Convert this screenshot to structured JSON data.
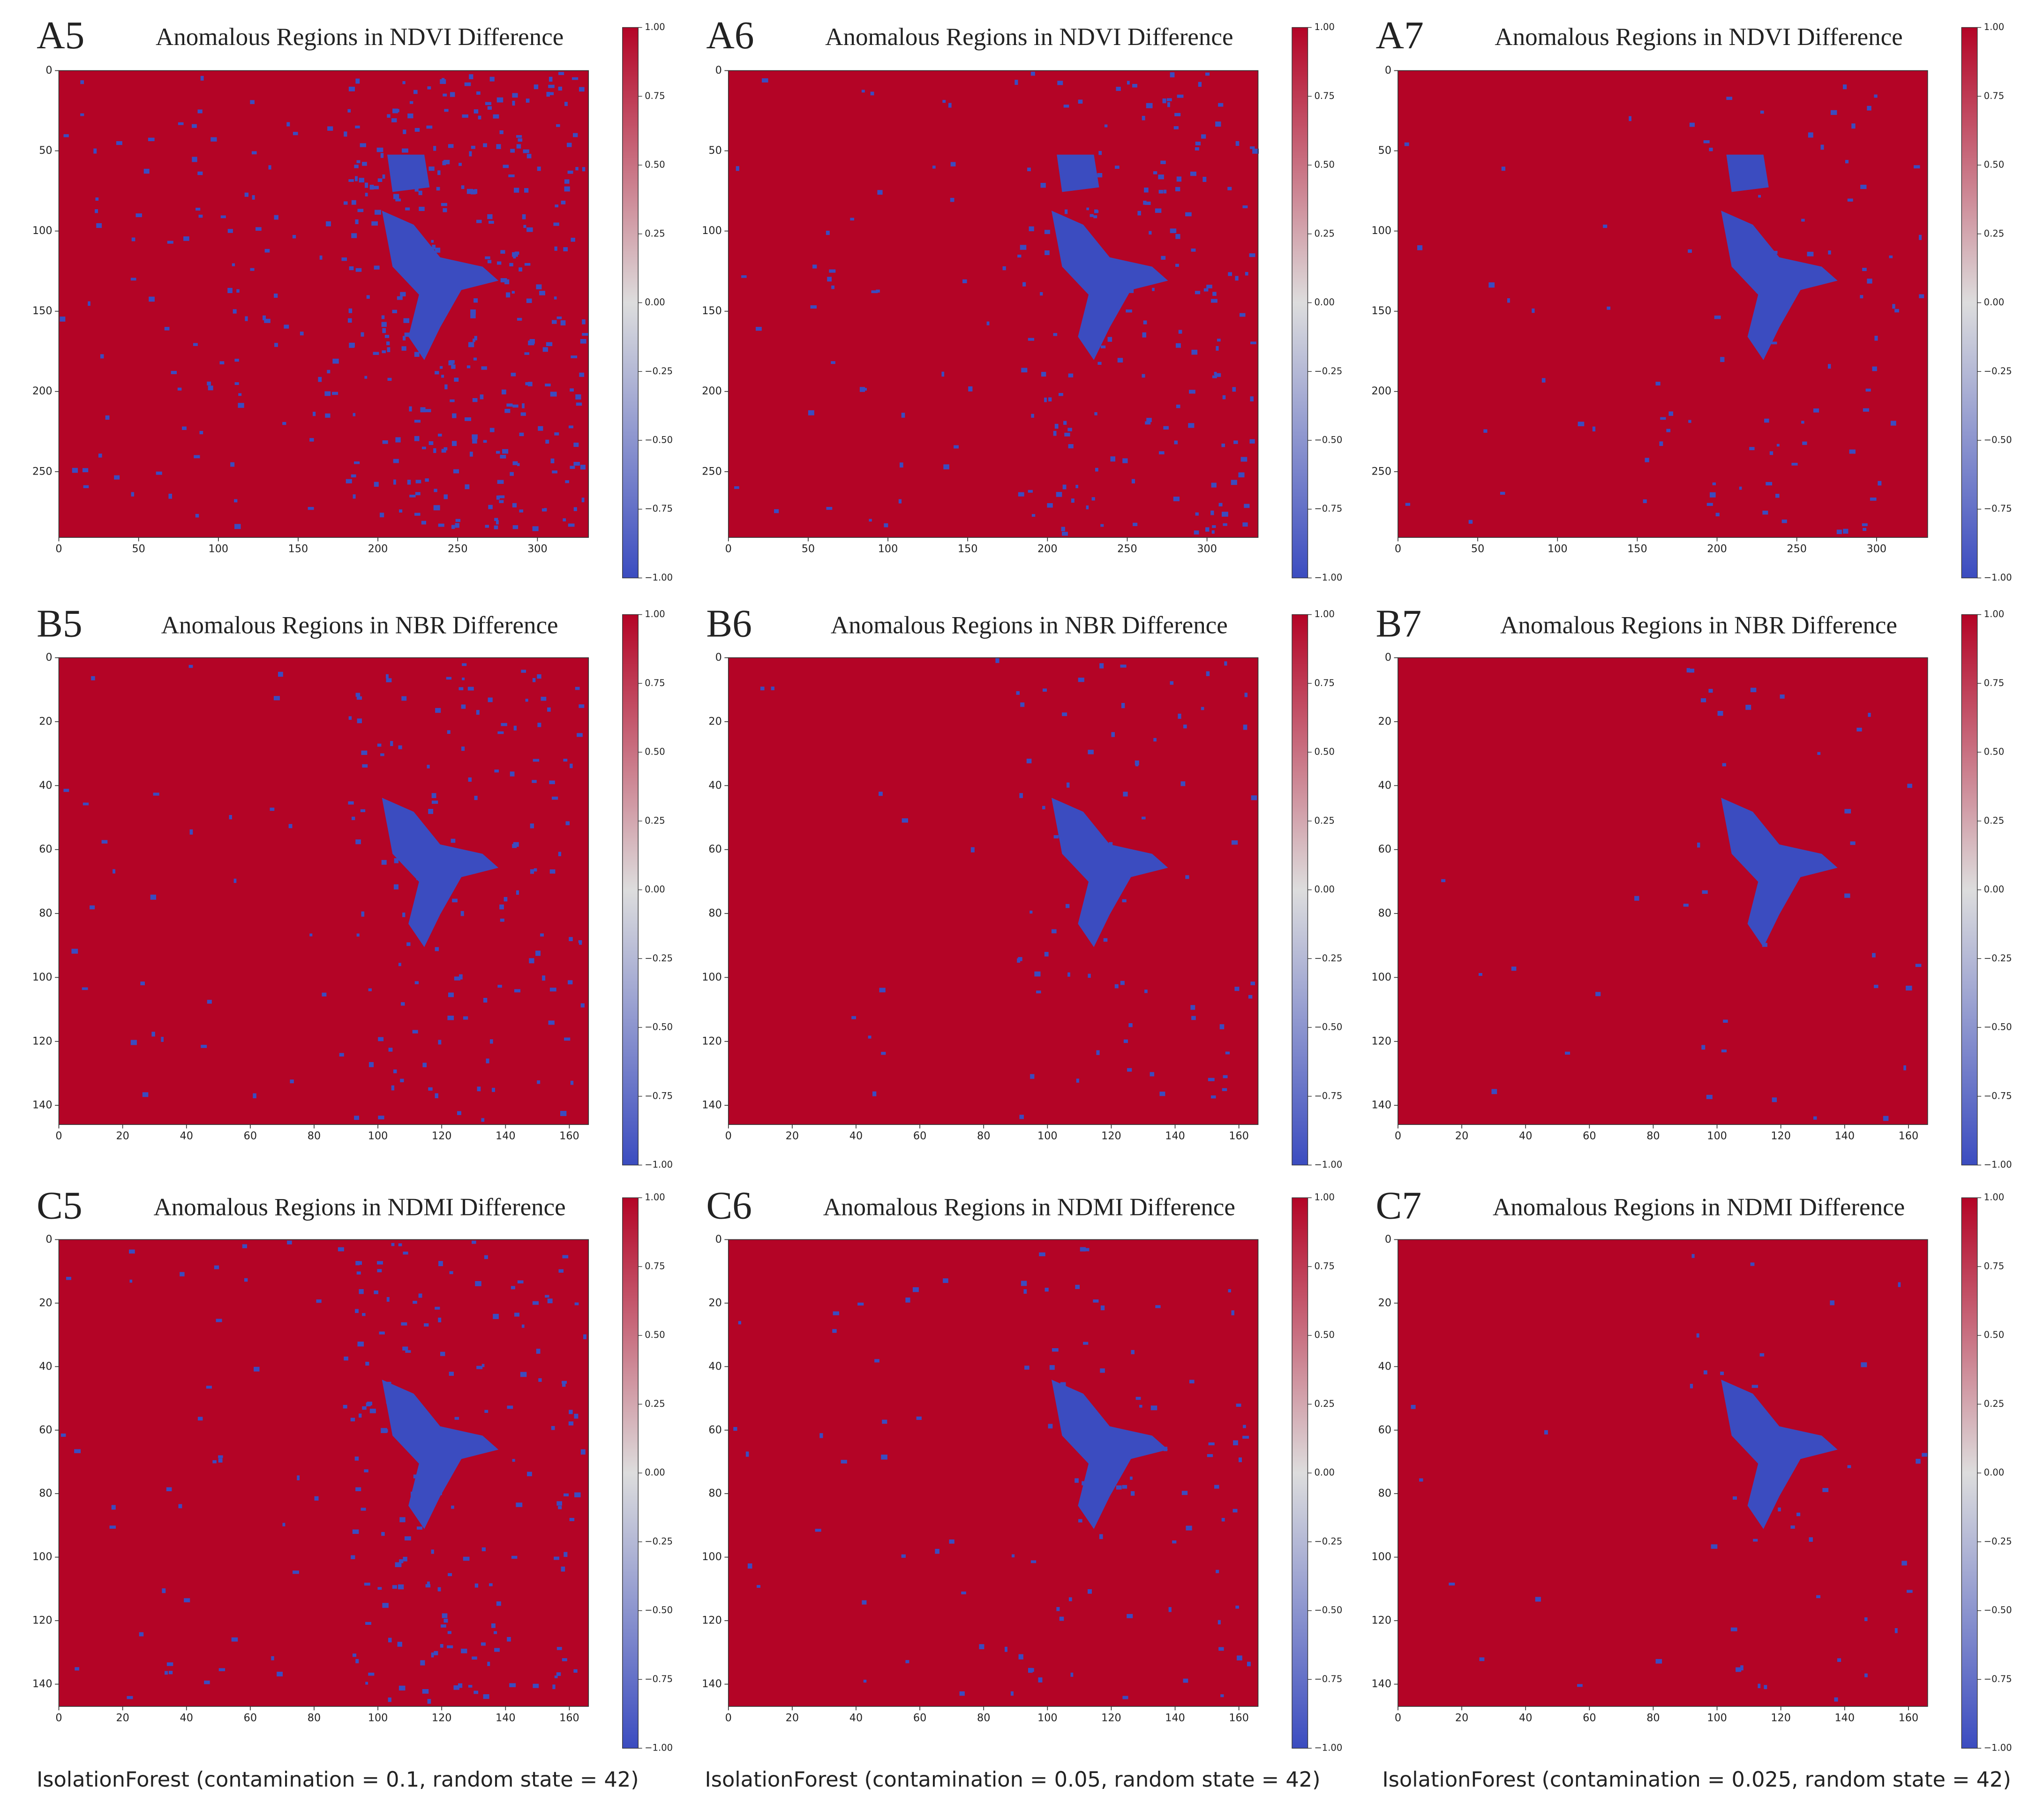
{
  "chart_data": [
    {
      "type": "heatmap",
      "panel_label": "A5",
      "title": "Anomalous Regions in NDVI Difference",
      "xlim": [
        0,
        332
      ],
      "ylim": [
        291,
        0
      ],
      "xticks": [
        0,
        50,
        100,
        150,
        200,
        250,
        300
      ],
      "yticks": [
        0,
        50,
        100,
        150,
        200,
        250
      ],
      "colormap": [
        "#3b4cc0",
        "#dddddd",
        "#b40426"
      ],
      "colorbar_lim": [
        -1,
        1
      ],
      "colorbar_ticks": [
        {
          "value": 1,
          "label": "1.00"
        },
        {
          "value": 0.75,
          "label": "0.75"
        },
        {
          "value": 0.5,
          "label": "0.50"
        },
        {
          "value": 0.25,
          "label": "0.25"
        },
        {
          "value": 0,
          "label": "0.00"
        },
        {
          "value": -0.25,
          "label": "−0.25"
        },
        {
          "value": -0.5,
          "label": "−0.50"
        },
        {
          "value": -0.75,
          "label": "−0.75"
        },
        {
          "value": -1,
          "label": "−1.00"
        }
      ]
    },
    {
      "type": "heatmap",
      "panel_label": "A6",
      "title": "Anomalous Regions in NDVI Difference",
      "xlim": [
        0,
        332
      ],
      "ylim": [
        291,
        0
      ],
      "xticks": [
        0,
        50,
        100,
        150,
        200,
        250,
        300
      ],
      "yticks": [
        0,
        50,
        100,
        150,
        200,
        250
      ],
      "colormap": [
        "#3b4cc0",
        "#dddddd",
        "#b40426"
      ],
      "colorbar_lim": [
        -1,
        1
      ],
      "colorbar_ticks": [
        {
          "value": 1,
          "label": "1.00"
        },
        {
          "value": 0.75,
          "label": "0.75"
        },
        {
          "value": 0.5,
          "label": "0.50"
        },
        {
          "value": 0.25,
          "label": "0.25"
        },
        {
          "value": 0,
          "label": "0.00"
        },
        {
          "value": -0.25,
          "label": "−0.25"
        },
        {
          "value": -0.5,
          "label": "−0.50"
        },
        {
          "value": -0.75,
          "label": "−0.75"
        },
        {
          "value": -1,
          "label": "−1.00"
        }
      ]
    },
    {
      "type": "heatmap",
      "panel_label": "A7",
      "title": "Anomalous Regions in NDVI Difference",
      "xlim": [
        0,
        332
      ],
      "ylim": [
        291,
        0
      ],
      "xticks": [
        0,
        50,
        100,
        150,
        200,
        250,
        300
      ],
      "yticks": [
        0,
        50,
        100,
        150,
        200,
        250
      ],
      "colormap": [
        "#3b4cc0",
        "#dddddd",
        "#b40426"
      ],
      "colorbar_lim": [
        -1,
        1
      ],
      "colorbar_ticks": [
        {
          "value": 1,
          "label": "1.00"
        },
        {
          "value": 0.75,
          "label": "0.75"
        },
        {
          "value": 0.5,
          "label": "0.50"
        },
        {
          "value": 0.25,
          "label": "0.25"
        },
        {
          "value": 0,
          "label": "0.00"
        },
        {
          "value": -0.25,
          "label": "−0.25"
        },
        {
          "value": -0.5,
          "label": "−0.50"
        },
        {
          "value": -0.75,
          "label": "−0.75"
        },
        {
          "value": -1,
          "label": "−1.00"
        }
      ]
    },
    {
      "type": "heatmap",
      "panel_label": "B5",
      "title": "Anomalous Regions in NBR Difference",
      "xlim": [
        0,
        166
      ],
      "ylim": [
        146,
        0
      ],
      "xticks": [
        0,
        20,
        40,
        60,
        80,
        100,
        120,
        140,
        160
      ],
      "yticks": [
        0,
        20,
        40,
        60,
        80,
        100,
        120,
        140
      ],
      "colormap": [
        "#3b4cc0",
        "#dddddd",
        "#b40426"
      ],
      "colorbar_lim": [
        -1,
        1
      ],
      "colorbar_ticks": [
        {
          "value": 1,
          "label": "1.00"
        },
        {
          "value": 0.75,
          "label": "0.75"
        },
        {
          "value": 0.5,
          "label": "0.50"
        },
        {
          "value": 0.25,
          "label": "0.25"
        },
        {
          "value": 0,
          "label": "0.00"
        },
        {
          "value": -0.25,
          "label": "−0.25"
        },
        {
          "value": -0.5,
          "label": "−0.50"
        },
        {
          "value": -0.75,
          "label": "−0.75"
        },
        {
          "value": -1,
          "label": "−1.00"
        }
      ]
    },
    {
      "type": "heatmap",
      "panel_label": "B6",
      "title": "Anomalous Regions in NBR Difference",
      "xlim": [
        0,
        166
      ],
      "ylim": [
        146,
        0
      ],
      "xticks": [
        0,
        20,
        40,
        60,
        80,
        100,
        120,
        140,
        160
      ],
      "yticks": [
        0,
        20,
        40,
        60,
        80,
        100,
        120,
        140
      ],
      "colormap": [
        "#3b4cc0",
        "#dddddd",
        "#b40426"
      ],
      "colorbar_lim": [
        -1,
        1
      ],
      "colorbar_ticks": [
        {
          "value": 1,
          "label": "1.00"
        },
        {
          "value": 0.75,
          "label": "0.75"
        },
        {
          "value": 0.5,
          "label": "0.50"
        },
        {
          "value": 0.25,
          "label": "0.25"
        },
        {
          "value": 0,
          "label": "0.00"
        },
        {
          "value": -0.25,
          "label": "−0.25"
        },
        {
          "value": -0.5,
          "label": "−0.50"
        },
        {
          "value": -0.75,
          "label": "−0.75"
        },
        {
          "value": -1,
          "label": "−1.00"
        }
      ]
    },
    {
      "type": "heatmap",
      "panel_label": "B7",
      "title": "Anomalous Regions in NBR Difference",
      "xlim": [
        0,
        166
      ],
      "ylim": [
        146,
        0
      ],
      "xticks": [
        0,
        20,
        40,
        60,
        80,
        100,
        120,
        140,
        160
      ],
      "yticks": [
        0,
        20,
        40,
        60,
        80,
        100,
        120,
        140
      ],
      "colormap": [
        "#3b4cc0",
        "#dddddd",
        "#b40426"
      ],
      "colorbar_lim": [
        -1,
        1
      ],
      "colorbar_ticks": [
        {
          "value": 1,
          "label": "1.00"
        },
        {
          "value": 0.75,
          "label": "0.75"
        },
        {
          "value": 0.5,
          "label": "0.50"
        },
        {
          "value": 0.25,
          "label": "0.25"
        },
        {
          "value": 0,
          "label": "0.00"
        },
        {
          "value": -0.25,
          "label": "−0.25"
        },
        {
          "value": -0.5,
          "label": "−0.50"
        },
        {
          "value": -0.75,
          "label": "−0.75"
        },
        {
          "value": -1,
          "label": "−1.00"
        }
      ]
    },
    {
      "type": "heatmap",
      "panel_label": "C5",
      "title": "Anomalous Regions in NDMI Difference",
      "xlim": [
        0,
        166
      ],
      "ylim": [
        147,
        0
      ],
      "xticks": [
        0,
        20,
        40,
        60,
        80,
        100,
        120,
        140,
        160
      ],
      "yticks": [
        0,
        20,
        40,
        60,
        80,
        100,
        120,
        140
      ],
      "colormap": [
        "#3b4cc0",
        "#dddddd",
        "#b40426"
      ],
      "colorbar_lim": [
        -1,
        1
      ],
      "colorbar_ticks": [
        {
          "value": 1,
          "label": "1.00"
        },
        {
          "value": 0.75,
          "label": "0.75"
        },
        {
          "value": 0.5,
          "label": "0.50"
        },
        {
          "value": 0.25,
          "label": "0.25"
        },
        {
          "value": 0,
          "label": "0.00"
        },
        {
          "value": -0.25,
          "label": "−0.25"
        },
        {
          "value": -0.5,
          "label": "−0.50"
        },
        {
          "value": -0.75,
          "label": "−0.75"
        },
        {
          "value": -1,
          "label": "−1.00"
        }
      ]
    },
    {
      "type": "heatmap",
      "panel_label": "C6",
      "title": "Anomalous Regions in NDMI Difference",
      "xlim": [
        0,
        166
      ],
      "ylim": [
        147,
        0
      ],
      "xticks": [
        0,
        20,
        40,
        60,
        80,
        100,
        120,
        140,
        160
      ],
      "yticks": [
        0,
        20,
        40,
        60,
        80,
        100,
        120,
        140
      ],
      "colormap": [
        "#3b4cc0",
        "#dddddd",
        "#b40426"
      ],
      "colorbar_lim": [
        -1,
        1
      ],
      "colorbar_ticks": [
        {
          "value": 1,
          "label": "1.00"
        },
        {
          "value": 0.75,
          "label": "0.75"
        },
        {
          "value": 0.5,
          "label": "0.50"
        },
        {
          "value": 0.25,
          "label": "0.25"
        },
        {
          "value": 0,
          "label": "0.00"
        },
        {
          "value": -0.25,
          "label": "−0.25"
        },
        {
          "value": -0.5,
          "label": "−0.50"
        },
        {
          "value": -0.75,
          "label": "−0.75"
        },
        {
          "value": -1,
          "label": "−1.00"
        }
      ]
    },
    {
      "type": "heatmap",
      "panel_label": "C7",
      "title": "Anomalous Regions in NDMI Difference",
      "xlim": [
        0,
        166
      ],
      "ylim": [
        147,
        0
      ],
      "xticks": [
        0,
        20,
        40,
        60,
        80,
        100,
        120,
        140,
        160
      ],
      "yticks": [
        0,
        20,
        40,
        60,
        80,
        100,
        120,
        140
      ],
      "colormap": [
        "#3b4cc0",
        "#dddddd",
        "#b40426"
      ],
      "colorbar_lim": [
        -1,
        1
      ],
      "colorbar_ticks": [
        {
          "value": 1,
          "label": "1.00"
        },
        {
          "value": 0.75,
          "label": "0.75"
        },
        {
          "value": 0.5,
          "label": "0.50"
        },
        {
          "value": 0.25,
          "label": "0.25"
        },
        {
          "value": 0,
          "label": "0.00"
        },
        {
          "value": -0.25,
          "label": "−0.25"
        },
        {
          "value": -0.5,
          "label": "−0.50"
        },
        {
          "value": -0.75,
          "label": "−0.75"
        },
        {
          "value": -1,
          "label": "−1.00"
        }
      ]
    }
  ],
  "captions": [
    "IsolationForest (contamination = 0.1, random state = 42)",
    "IsolationForest (contamination = 0.05, random state = 42)",
    "IsolationForest (contamination = 0.025, random state = 42)"
  ]
}
